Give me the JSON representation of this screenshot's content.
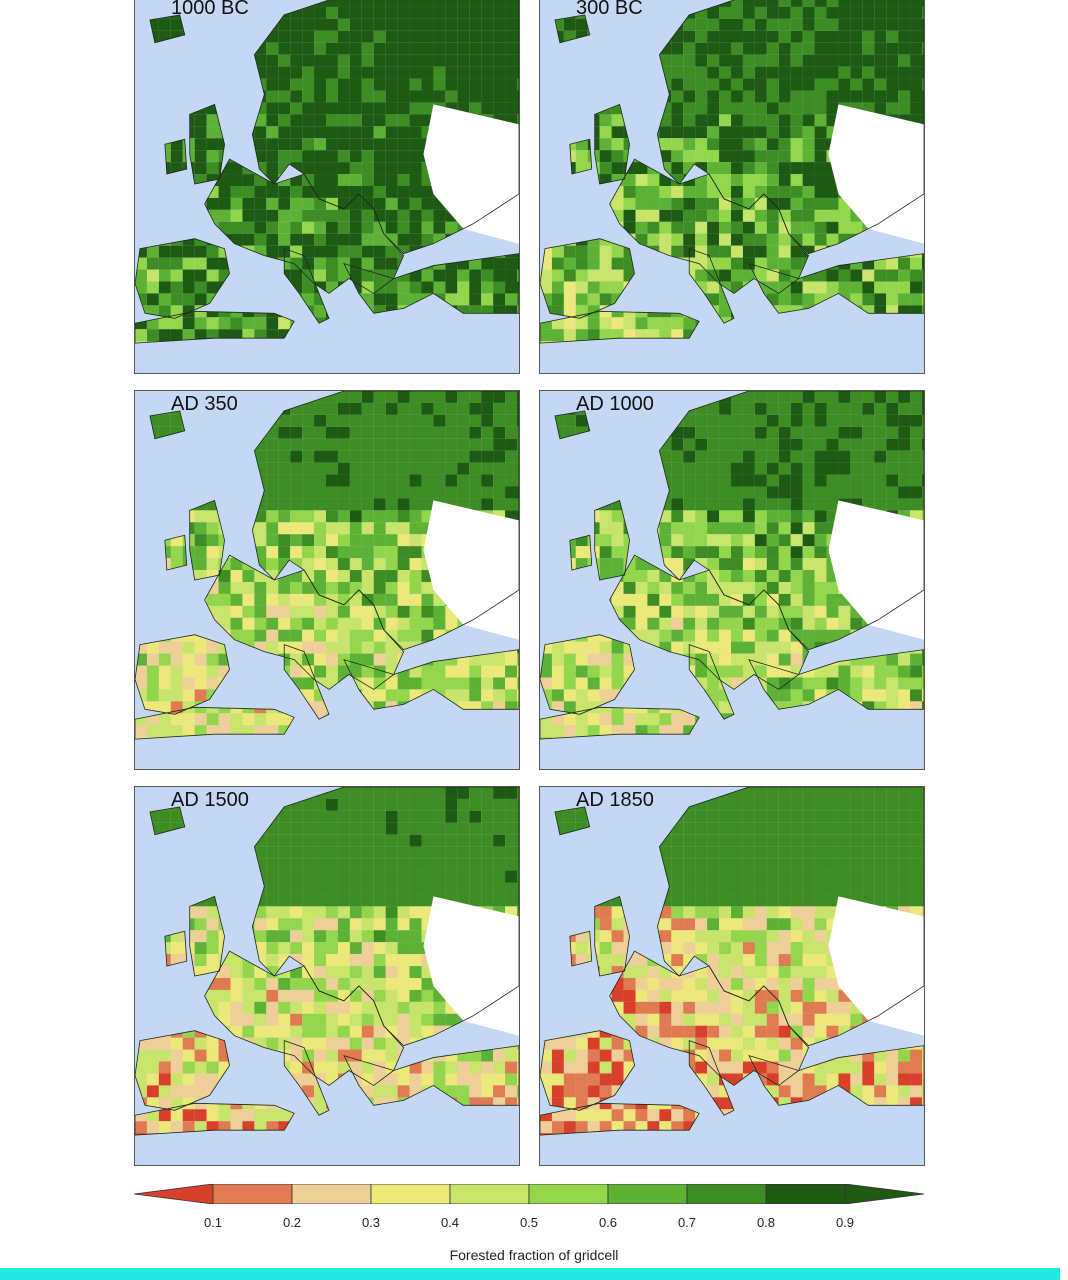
{
  "panels": [
    {
      "label": "1000 BC",
      "forest": 0.85
    },
    {
      "label": "300 BC",
      "forest": 0.72
    },
    {
      "label": "AD 350",
      "forest": 0.55
    },
    {
      "label": "AD 1000",
      "forest": 0.58
    },
    {
      "label": "AD 1500",
      "forest": 0.45
    },
    {
      "label": "AD 1850",
      "forest": 0.35
    }
  ],
  "legend": {
    "title": "Forested fraction of gridcell",
    "ticks": [
      "0.1",
      "0.2",
      "0.3",
      "0.4",
      "0.5",
      "0.6",
      "0.7",
      "0.8",
      "0.9"
    ],
    "colors": [
      "#d9402b",
      "#e07a50",
      "#efcf98",
      "#ece87a",
      "#c9e46a",
      "#93d64c",
      "#5db134",
      "#3d8c24",
      "#1f5a14"
    ]
  },
  "colors": {
    "sea": "#c4d7f5",
    "nodata": "#ffffff",
    "accent_bar": "#22e8e0"
  }
}
